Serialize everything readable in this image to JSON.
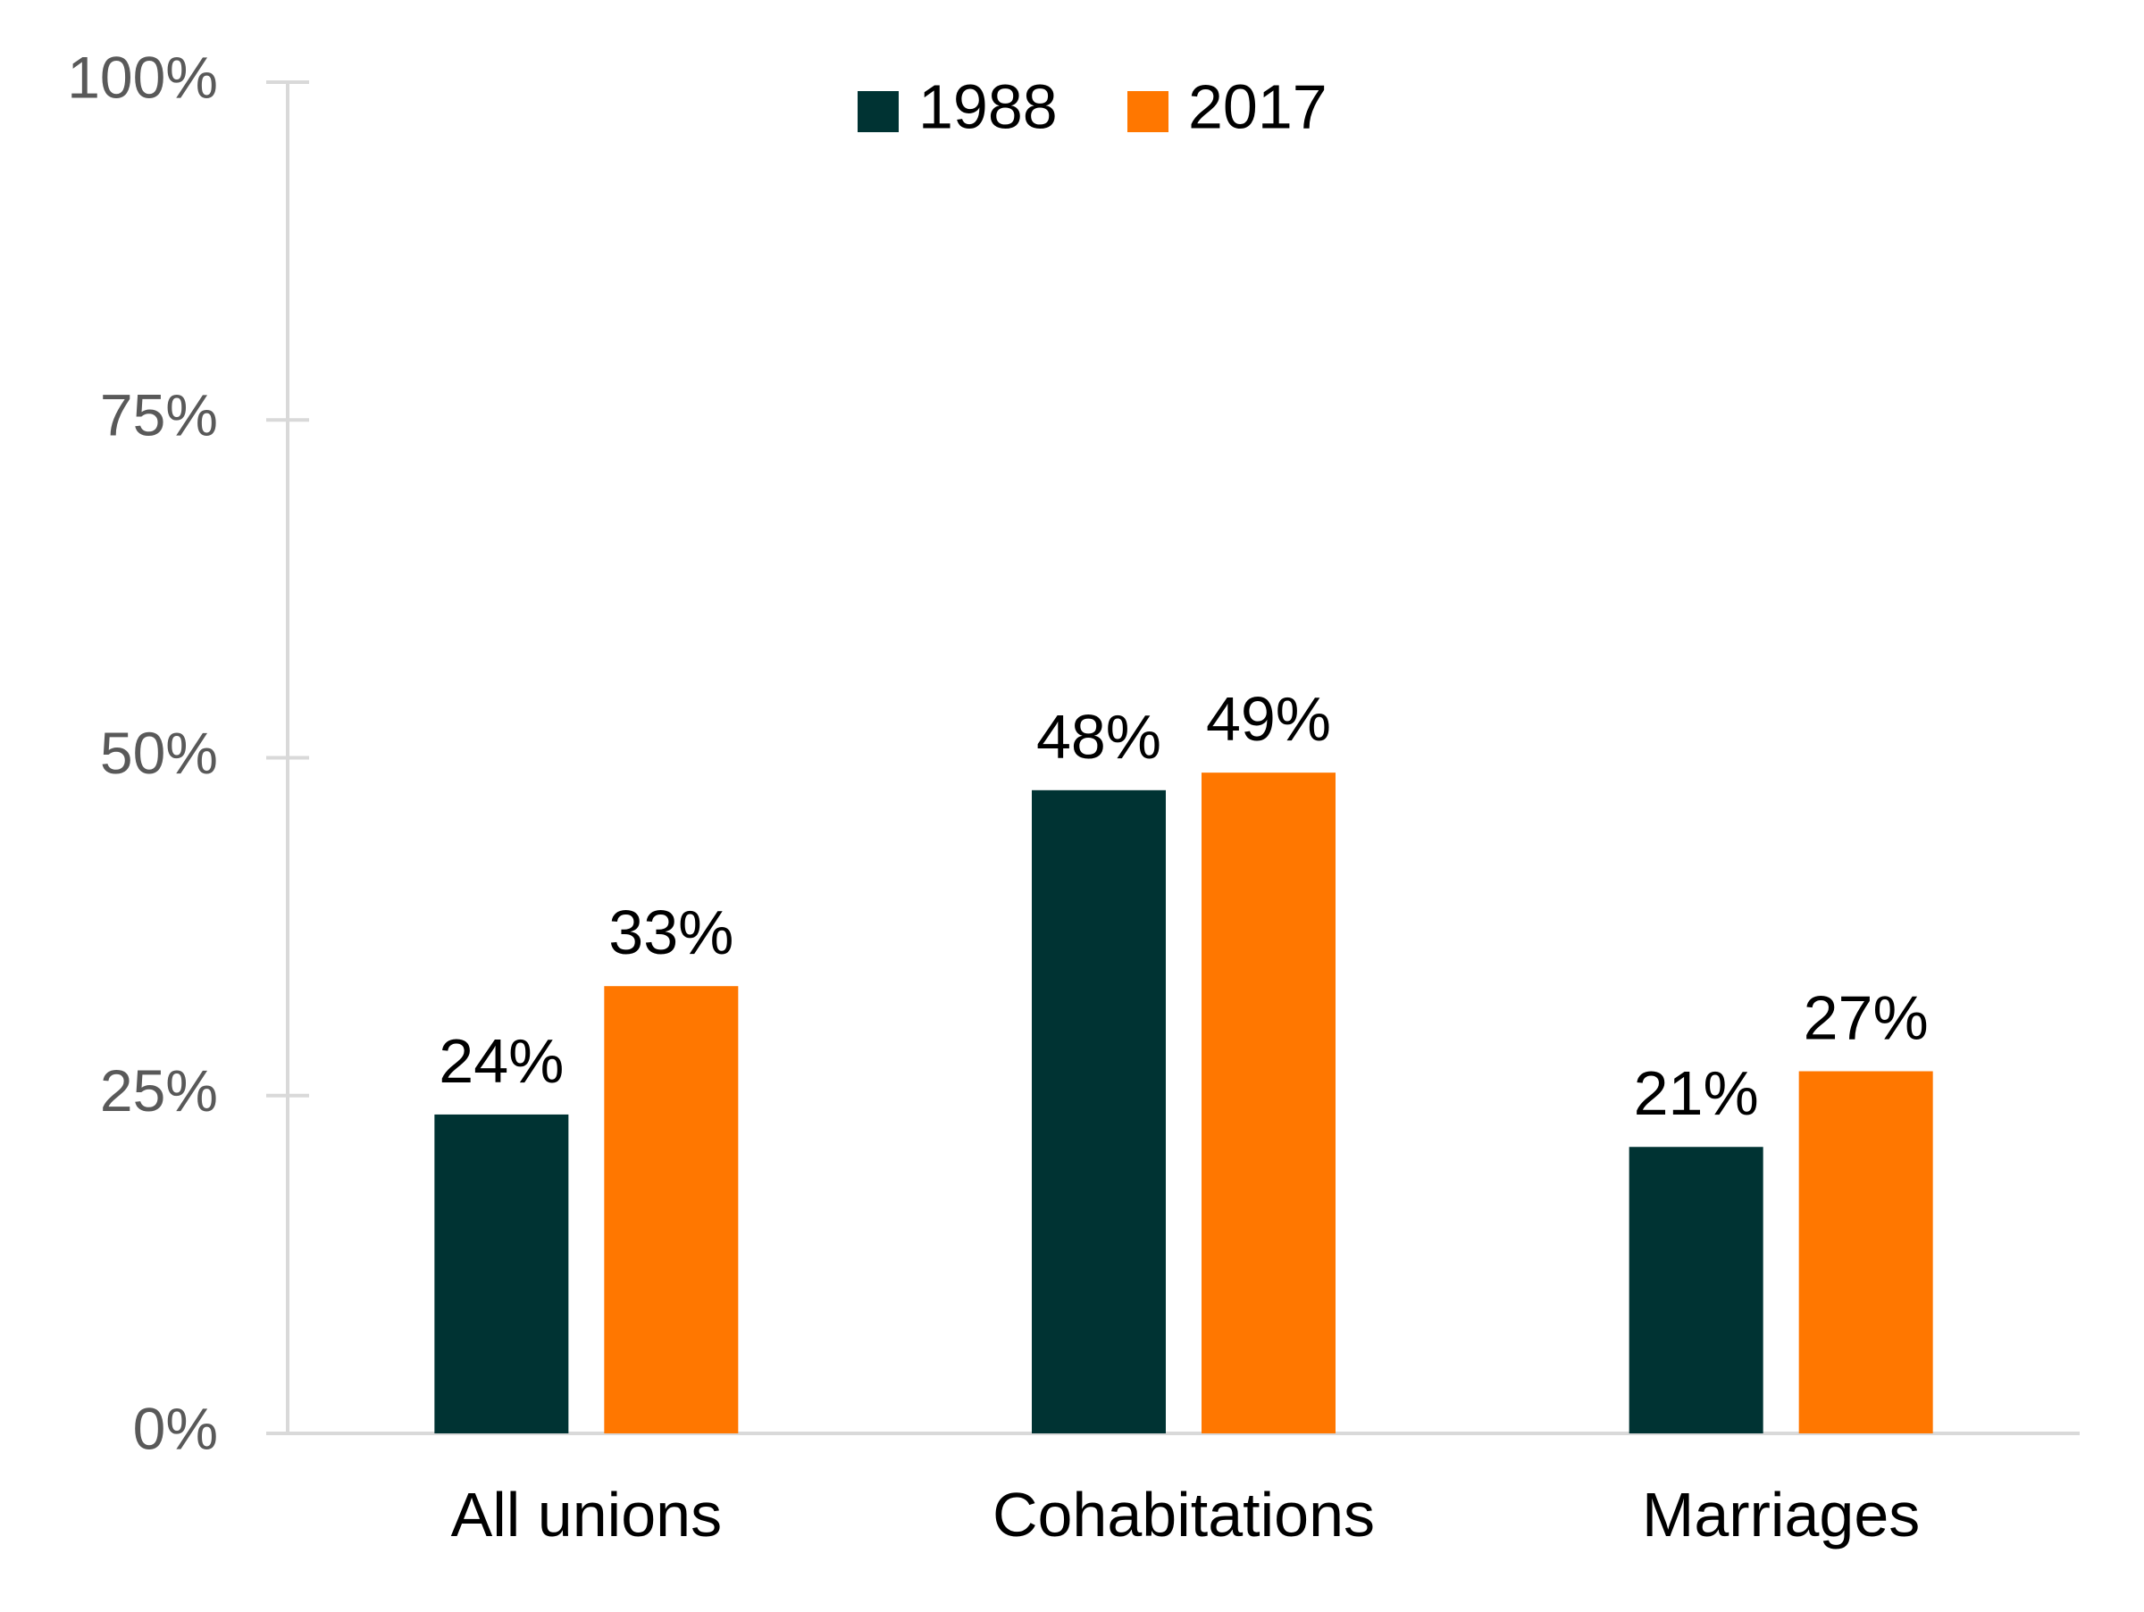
{
  "chart_data": {
    "type": "bar",
    "title": "",
    "xlabel": "",
    "ylabel": "",
    "categories": [
      "All unions",
      "Cohabitations",
      "Marriages"
    ],
    "series": [
      {
        "name": "1988",
        "color": "#003333",
        "values": [
          23.6,
          47.6,
          21.2
        ],
        "labels": [
          "24%",
          "48%",
          "21%"
        ]
      },
      {
        "name": "2017",
        "color": "#FF7700",
        "values": [
          33.1,
          48.9,
          26.8
        ],
        "labels": [
          "33%",
          "49%",
          "27%"
        ]
      }
    ],
    "ylim": [
      0,
      100
    ],
    "yticks": [
      0,
      25,
      50,
      75,
      100
    ],
    "ytick_labels": [
      "0%",
      "25%",
      "50%",
      "75%",
      "100%"
    ],
    "grid": false,
    "legend_position": "top-center",
    "axis_color": "#D9D9D9"
  }
}
